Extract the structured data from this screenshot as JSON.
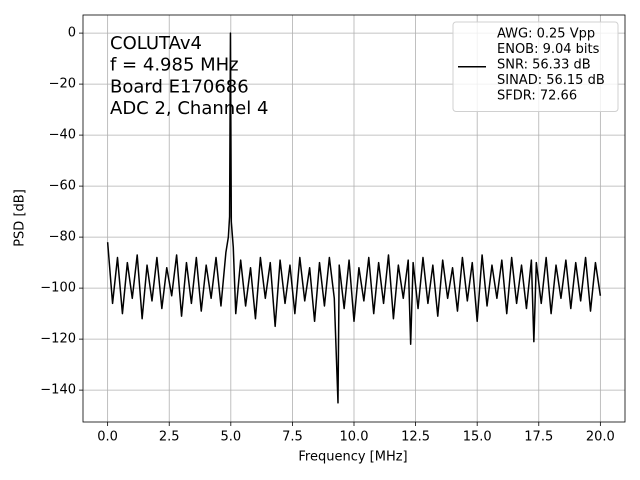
{
  "chart_data": {
    "type": "line",
    "xlabel": "Frequency [MHz]",
    "ylabel": "PSD [dB]",
    "annotations": [
      "COLUTAv4",
      "f = 4.985 MHz",
      "Board E170686",
      "ADC 2, Channel 4"
    ],
    "grid": true,
    "legend": "upper right",
    "xlim": [
      -1,
      21
    ],
    "ylim": [
      -152.5,
      7.1
    ],
    "xticks": [
      {
        "value": 0,
        "label": "0.0"
      },
      {
        "value": 2.5,
        "label": "2.5"
      },
      {
        "value": 5,
        "label": "5.0"
      },
      {
        "value": 7.5,
        "label": "7.5"
      },
      {
        "value": 10,
        "label": "10.0"
      },
      {
        "value": 12.5,
        "label": "12.5"
      },
      {
        "value": 15,
        "label": "15.0"
      },
      {
        "value": 17.5,
        "label": "17.5"
      },
      {
        "value": 20,
        "label": "20.0"
      }
    ],
    "yticks": [
      0,
      {
        "value": -20,
        "label": "−20"
      },
      {
        "value": -40,
        "label": "−40"
      },
      {
        "value": -60,
        "label": "−60"
      },
      {
        "value": -80,
        "label": "−80"
      },
      {
        "value": -100,
        "label": "−100"
      },
      {
        "value": -120,
        "label": "−120"
      },
      {
        "value": -140,
        "label": "−140"
      }
    ],
    "x": [
      0,
      0.2,
      0.4,
      0.6,
      0.8,
      1,
      1.2,
      1.4,
      1.6,
      1.8,
      2,
      2.2,
      2.4,
      2.6,
      2.8,
      3,
      3.2,
      3.4,
      3.6,
      3.8,
      4,
      4.2,
      4.4,
      4.6,
      4.8,
      4.9,
      4.95,
      4.985,
      5.02,
      5.1,
      5.2,
      5.4,
      5.6,
      5.8,
      6,
      6.2,
      6.4,
      6.6,
      6.8,
      7,
      7.2,
      7.4,
      7.6,
      7.8,
      8,
      8.2,
      8.4,
      8.6,
      8.8,
      9,
      9.2,
      9.35,
      9.4,
      9.6,
      9.8,
      10,
      10.2,
      10.4,
      10.6,
      10.8,
      11,
      11.2,
      11.4,
      11.6,
      11.8,
      12,
      12.2,
      12.3,
      12.4,
      12.6,
      12.8,
      13,
      13.2,
      13.4,
      13.6,
      13.8,
      14,
      14.2,
      14.4,
      14.6,
      14.8,
      15,
      15.2,
      15.4,
      15.6,
      15.8,
      16,
      16.2,
      16.4,
      16.6,
      16.8,
      17,
      17.2,
      17.3,
      17.4,
      17.6,
      17.8,
      18,
      18.2,
      18.4,
      18.6,
      18.8,
      19,
      19.2,
      19.4,
      19.6,
      19.8,
      20
    ],
    "series": [
      {
        "name": [
          "AWG: 0.25 Vpp",
          "ENOB: 9.04 bits",
          "SNR: 56.33 dB",
          "SINAD: 56.15 dB",
          "SFDR: 72.66"
        ],
        "color": "#000000",
        "values": [
          -82,
          -106,
          -88,
          -110,
          -90,
          -104,
          -87,
          -112,
          -91,
          -105,
          -88,
          -108,
          -92,
          -103,
          -87,
          -111,
          -90,
          -106,
          -88,
          -109,
          -91,
          -104,
          -88,
          -107,
          -86,
          -80,
          -72,
          0,
          -74,
          -84,
          -110,
          -89,
          -107,
          -92,
          -112,
          -88,
          -104,
          -90,
          -115,
          -89,
          -106,
          -91,
          -110,
          -88,
          -105,
          -92,
          -113,
          -90,
          -107,
          -88,
          -104,
          -145,
          -91,
          -108,
          -89,
          -113,
          -92,
          -105,
          -88,
          -110,
          -90,
          -106,
          -87,
          -112,
          -91,
          -104,
          -89,
          -122,
          -90,
          -108,
          -88,
          -106,
          -91,
          -111,
          -89,
          -104,
          -92,
          -109,
          -88,
          -105,
          -90,
          -113,
          -87,
          -107,
          -91,
          -104,
          -89,
          -110,
          -88,
          -106,
          -91,
          -108,
          -89,
          -121,
          -90,
          -106,
          -88,
          -110,
          -91,
          -104,
          -89,
          -108,
          -90,
          -105,
          -88,
          -109,
          -90,
          -103
        ]
      }
    ]
  }
}
